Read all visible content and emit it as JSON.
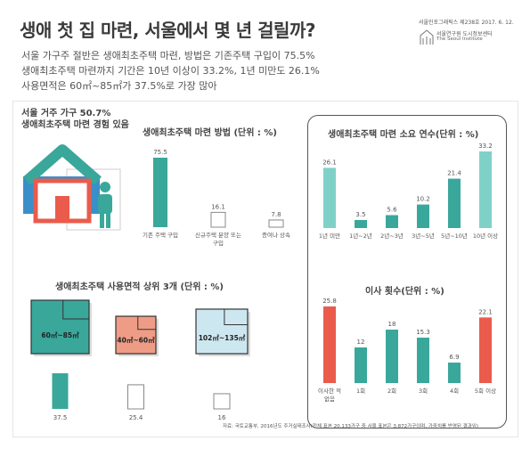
{
  "header": {
    "title": "생애 첫 집 마련, 서울에서 몇 년 걸릴까?",
    "subtitles": [
      "서울 가구주 절반은 생애최초주택 마련, 방법은 기존주택 구입이 75.5%",
      "생애최초주택 마련까지 기간은 10년 이상이 33.2%, 1년 미만도 26.1%",
      "사용면적은 60㎡~85㎡가 37.5%로 가장 많아"
    ],
    "source_meta": "서울인포그래픽스 제238호 2017. 6. 12.",
    "logo_ko": "서울연구원 도시정보센터",
    "logo_en": "The Seoul Institute"
  },
  "house_caption": [
    "서울 거주 가구 50.7%",
    "생애최초주택 마련 경험 있음"
  ],
  "footer": "자료: 국토교통부, 2016년도 주거실태조사(전체 표본 20,133가구 중 서울 표본은 3,872가구이며, 가중치를 반영된 결과임)",
  "colors": {
    "teal": "#3aa79b",
    "teal_light": "#7fd1c8",
    "red": "#ea5b4c",
    "salmon": "#ee9c86",
    "lightblue": "#cde7f0",
    "dark": "#555555"
  },
  "chart_data": [
    {
      "type": "bar",
      "title": "생애최초주택 마련 방법 (단위 : %)",
      "categories": [
        "기존 주택 구입",
        "신규주택 분양 또는 구입",
        "증여나 상속"
      ],
      "values": [
        75.5,
        16.1,
        7.8
      ],
      "styles": [
        "filled",
        "outline",
        "outline"
      ],
      "color": "#3aa79b"
    },
    {
      "type": "bar",
      "title": "생애최초주택 마련 소요 연수(단위 : %)",
      "categories": [
        "1년 미만",
        "1년~2년",
        "2년~3년",
        "3년~5년",
        "5년~10년",
        "10년 이상"
      ],
      "values": [
        26.1,
        3.5,
        5.6,
        10.2,
        21.4,
        33.2
      ],
      "colors": [
        "#7fd1c8",
        "#3aa79b",
        "#3aa79b",
        "#3aa79b",
        "#3aa79b",
        "#7fd1c8"
      ]
    },
    {
      "type": "bar",
      "title": "이사 횟수(단위 : %)",
      "categories": [
        "이사한 적 없음",
        "1회",
        "2회",
        "3회",
        "4회",
        "5회 이상"
      ],
      "values": [
        25.8,
        12.0,
        18.0,
        15.3,
        6.9,
        22.1
      ],
      "colors": [
        "#ea5b4c",
        "#3aa79b",
        "#3aa79b",
        "#3aa79b",
        "#3aa79b",
        "#ea5b4c"
      ]
    },
    {
      "type": "bar",
      "title": "생애최초주택 사용면적 상위 3개 (단위 : %)",
      "categories": [
        "60㎡~85㎡",
        "40㎡~60㎡",
        "102㎡~135㎡"
      ],
      "values": [
        37.5,
        25.4,
        16.0
      ],
      "colors": [
        "#3aa79b",
        "#ee9c86",
        "#cde7f0"
      ],
      "styles": [
        "filled",
        "outline",
        "outline"
      ]
    }
  ]
}
